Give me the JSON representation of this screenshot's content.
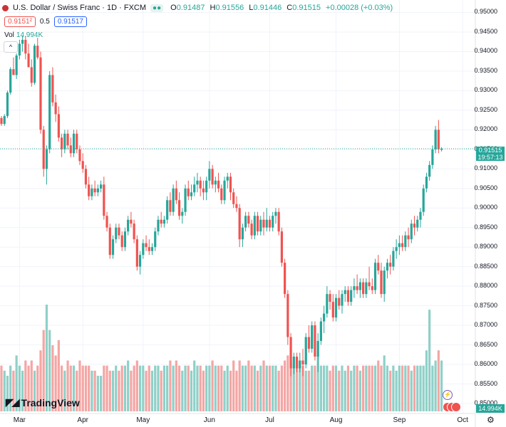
{
  "header": {
    "symbol": "U.S. Dollar / Swiss Franc · 1D · FXCM",
    "ohlc": [
      {
        "k": "O",
        "v": "0.91487"
      },
      {
        "k": "H",
        "v": "0.91556"
      },
      {
        "k": "L",
        "v": "0.91446"
      },
      {
        "k": "C",
        "v": "0.91515"
      }
    ],
    "change": "+0.00028 (+0.03%)",
    "sell_price": "0.9151²",
    "spread": "0.5",
    "buy_price": "0.91517",
    "volume_label": "Vol",
    "volume_value": "14.994K",
    "collapse_glyph": "^"
  },
  "price_tags": {
    "last_price": "0.91515",
    "countdown": "19:57:13",
    "volume": "14.994K"
  },
  "logo_text": "TradingView",
  "colors": {
    "up": "#26a69a",
    "down": "#ef5350",
    "up_volume": "#8fd0c8",
    "down_volume": "#f4a6a4",
    "grid": "#f0f3fa",
    "last_line": "#26a69a"
  },
  "chart_data": {
    "type": "candlestick",
    "symbol": "USDCHF",
    "interval": "1D",
    "y_ticks": [
      0.95,
      0.945,
      0.94,
      0.935,
      0.93,
      0.925,
      0.92,
      0.915,
      0.91,
      0.905,
      0.9,
      0.895,
      0.89,
      0.885,
      0.88,
      0.875,
      0.87,
      0.865,
      0.86,
      0.855,
      0.85
    ],
    "y_tick_labels": [
      "0.95000",
      "0.94500",
      "0.94000",
      "0.93500",
      "0.93000",
      "0.92500",
      "0.92000",
      "0.91500",
      "0.91000",
      "0.90500",
      "0.90000",
      "0.89500",
      "0.89000",
      "0.88500",
      "0.88000",
      "0.87500",
      "0.87000",
      "0.86500",
      "0.86000",
      "0.85500",
      "0.85000"
    ],
    "ylim": [
      0.848,
      0.951
    ],
    "x_labels": [
      {
        "label": "Mar",
        "index": 6
      },
      {
        "label": "Apr",
        "index": 27
      },
      {
        "label": "May",
        "index": 47
      },
      {
        "label": "Jun",
        "index": 69
      },
      {
        "label": "Jul",
        "index": 89
      },
      {
        "label": "Aug",
        "index": 111
      },
      {
        "label": "Sep",
        "index": 132
      },
      {
        "label": "Oct",
        "index": 153
      }
    ],
    "last_price": 0.91515,
    "candles": [
      [
        0.923,
        0.9235,
        0.921,
        0.9215,
        9
      ],
      [
        0.9215,
        0.924,
        0.921,
        0.9235,
        8
      ],
      [
        0.9235,
        0.93,
        0.923,
        0.9295,
        7
      ],
      [
        0.9295,
        0.936,
        0.929,
        0.9355,
        9
      ],
      [
        0.9355,
        0.9385,
        0.934,
        0.934,
        8
      ],
      [
        0.934,
        0.9395,
        0.933,
        0.939,
        11
      ],
      [
        0.939,
        0.943,
        0.938,
        0.942,
        9
      ],
      [
        0.942,
        0.944,
        0.94,
        0.943,
        8
      ],
      [
        0.943,
        0.944,
        0.938,
        0.9395,
        10
      ],
      [
        0.9395,
        0.942,
        0.936,
        0.936,
        9
      ],
      [
        0.936,
        0.938,
        0.931,
        0.932,
        10
      ],
      [
        0.932,
        0.942,
        0.9315,
        0.9415,
        8
      ],
      [
        0.9415,
        0.9435,
        0.938,
        0.9385,
        9
      ],
      [
        0.9385,
        0.94,
        0.919,
        0.92,
        12
      ],
      [
        0.92,
        0.921,
        0.908,
        0.91,
        16
      ],
      [
        0.91,
        0.916,
        0.906,
        0.915,
        21
      ],
      [
        0.915,
        0.935,
        0.914,
        0.934,
        16
      ],
      [
        0.934,
        0.936,
        0.926,
        0.927,
        13
      ],
      [
        0.927,
        0.929,
        0.922,
        0.924,
        11
      ],
      [
        0.924,
        0.926,
        0.917,
        0.918,
        14
      ],
      [
        0.918,
        0.919,
        0.913,
        0.915,
        9
      ],
      [
        0.915,
        0.92,
        0.914,
        0.919,
        8
      ],
      [
        0.919,
        0.92,
        0.915,
        0.916,
        10
      ],
      [
        0.916,
        0.918,
        0.913,
        0.914,
        9
      ],
      [
        0.914,
        0.92,
        0.913,
        0.919,
        9
      ],
      [
        0.919,
        0.92,
        0.914,
        0.915,
        8
      ],
      [
        0.915,
        0.916,
        0.911,
        0.912,
        10
      ],
      [
        0.912,
        0.914,
        0.909,
        0.91,
        9
      ],
      [
        0.91,
        0.911,
        0.905,
        0.906,
        9
      ],
      [
        0.906,
        0.908,
        0.902,
        0.903,
        9
      ],
      [
        0.903,
        0.906,
        0.902,
        0.905,
        8
      ],
      [
        0.905,
        0.907,
        0.903,
        0.904,
        8
      ],
      [
        0.904,
        0.906,
        0.903,
        0.905,
        7
      ],
      [
        0.905,
        0.907,
        0.904,
        0.906,
        7
      ],
      [
        0.906,
        0.908,
        0.897,
        0.898,
        9
      ],
      [
        0.898,
        0.899,
        0.894,
        0.895,
        9
      ],
      [
        0.895,
        0.896,
        0.887,
        0.888,
        8
      ],
      [
        0.888,
        0.893,
        0.887,
        0.892,
        8
      ],
      [
        0.892,
        0.896,
        0.891,
        0.895,
        9
      ],
      [
        0.895,
        0.896,
        0.892,
        0.893,
        8
      ],
      [
        0.893,
        0.894,
        0.889,
        0.89,
        9
      ],
      [
        0.89,
        0.895,
        0.889,
        0.894,
        9
      ],
      [
        0.894,
        0.898,
        0.893,
        0.897,
        10
      ],
      [
        0.897,
        0.899,
        0.895,
        0.896,
        8
      ],
      [
        0.896,
        0.897,
        0.891,
        0.892,
        9
      ],
      [
        0.892,
        0.893,
        0.884,
        0.885,
        10
      ],
      [
        0.885,
        0.889,
        0.883,
        0.888,
        9
      ],
      [
        0.888,
        0.892,
        0.887,
        0.891,
        9
      ],
      [
        0.891,
        0.893,
        0.889,
        0.89,
        8
      ],
      [
        0.89,
        0.892,
        0.888,
        0.889,
        9
      ],
      [
        0.889,
        0.891,
        0.888,
        0.89,
        8
      ],
      [
        0.89,
        0.895,
        0.889,
        0.894,
        9
      ],
      [
        0.894,
        0.898,
        0.893,
        0.897,
        9
      ],
      [
        0.897,
        0.899,
        0.895,
        0.896,
        8
      ],
      [
        0.896,
        0.898,
        0.895,
        0.897,
        9
      ],
      [
        0.897,
        0.903,
        0.896,
        0.902,
        9
      ],
      [
        0.902,
        0.904,
        0.898,
        0.899,
        10
      ],
      [
        0.899,
        0.906,
        0.898,
        0.905,
        9
      ],
      [
        0.905,
        0.907,
        0.901,
        0.902,
        10
      ],
      [
        0.902,
        0.904,
        0.897,
        0.898,
        9
      ],
      [
        0.898,
        0.9,
        0.896,
        0.899,
        8
      ],
      [
        0.899,
        0.906,
        0.898,
        0.905,
        9
      ],
      [
        0.905,
        0.907,
        0.902,
        0.903,
        9
      ],
      [
        0.903,
        0.906,
        0.902,
        0.904,
        8
      ],
      [
        0.904,
        0.908,
        0.903,
        0.906,
        10
      ],
      [
        0.906,
        0.909,
        0.904,
        0.907,
        9
      ],
      [
        0.907,
        0.908,
        0.903,
        0.905,
        9
      ],
      [
        0.905,
        0.907,
        0.902,
        0.904,
        8
      ],
      [
        0.904,
        0.908,
        0.902,
        0.907,
        9
      ],
      [
        0.907,
        0.912,
        0.905,
        0.91,
        9
      ],
      [
        0.91,
        0.911,
        0.905,
        0.906,
        10
      ],
      [
        0.906,
        0.908,
        0.904,
        0.907,
        9
      ],
      [
        0.907,
        0.909,
        0.904,
        0.905,
        9
      ],
      [
        0.905,
        0.906,
        0.901,
        0.902,
        9
      ],
      [
        0.902,
        0.908,
        0.901,
        0.907,
        8
      ],
      [
        0.907,
        0.909,
        0.905,
        0.908,
        9
      ],
      [
        0.908,
        0.909,
        0.902,
        0.904,
        8
      ],
      [
        0.904,
        0.905,
        0.9,
        0.901,
        10
      ],
      [
        0.901,
        0.903,
        0.899,
        0.9,
        8
      ],
      [
        0.9,
        0.901,
        0.89,
        0.892,
        10
      ],
      [
        0.892,
        0.896,
        0.89,
        0.895,
        9
      ],
      [
        0.895,
        0.899,
        0.894,
        0.898,
        9
      ],
      [
        0.898,
        0.899,
        0.895,
        0.896,
        10
      ],
      [
        0.896,
        0.897,
        0.892,
        0.893,
        9
      ],
      [
        0.893,
        0.899,
        0.892,
        0.898,
        9
      ],
      [
        0.898,
        0.899,
        0.893,
        0.894,
        8
      ],
      [
        0.894,
        0.898,
        0.893,
        0.897,
        9
      ],
      [
        0.897,
        0.899,
        0.893,
        0.895,
        10
      ],
      [
        0.895,
        0.9,
        0.894,
        0.897,
        9
      ],
      [
        0.897,
        0.898,
        0.894,
        0.895,
        9
      ],
      [
        0.895,
        0.899,
        0.894,
        0.898,
        9
      ],
      [
        0.898,
        0.9,
        0.896,
        0.899,
        9
      ],
      [
        0.899,
        0.9,
        0.893,
        0.894,
        8
      ],
      [
        0.894,
        0.895,
        0.885,
        0.886,
        9
      ],
      [
        0.886,
        0.887,
        0.877,
        0.878,
        10
      ],
      [
        0.878,
        0.879,
        0.865,
        0.867,
        11
      ],
      [
        0.867,
        0.868,
        0.857,
        0.859,
        10
      ],
      [
        0.859,
        0.863,
        0.8575,
        0.862,
        9
      ],
      [
        0.862,
        0.863,
        0.858,
        0.859,
        10
      ],
      [
        0.859,
        0.863,
        0.858,
        0.861,
        9
      ],
      [
        0.861,
        0.864,
        0.857,
        0.86,
        9
      ],
      [
        0.86,
        0.868,
        0.859,
        0.867,
        8
      ],
      [
        0.867,
        0.87,
        0.863,
        0.864,
        8
      ],
      [
        0.864,
        0.871,
        0.863,
        0.87,
        9
      ],
      [
        0.87,
        0.871,
        0.861,
        0.862,
        9
      ],
      [
        0.862,
        0.868,
        0.858,
        0.866,
        12
      ],
      [
        0.866,
        0.872,
        0.865,
        0.871,
        9
      ],
      [
        0.871,
        0.875,
        0.868,
        0.873,
        9
      ],
      [
        0.873,
        0.88,
        0.872,
        0.878,
        9
      ],
      [
        0.878,
        0.879,
        0.874,
        0.876,
        8
      ],
      [
        0.876,
        0.878,
        0.871,
        0.872,
        9
      ],
      [
        0.872,
        0.878,
        0.871,
        0.877,
        9
      ],
      [
        0.877,
        0.879,
        0.874,
        0.875,
        8
      ],
      [
        0.875,
        0.879,
        0.873,
        0.878,
        9
      ],
      [
        0.878,
        0.88,
        0.876,
        0.879,
        8
      ],
      [
        0.879,
        0.88,
        0.875,
        0.876,
        9
      ],
      [
        0.876,
        0.88,
        0.875,
        0.879,
        8
      ],
      [
        0.879,
        0.882,
        0.877,
        0.88,
        9
      ],
      [
        0.88,
        0.883,
        0.878,
        0.879,
        9
      ],
      [
        0.879,
        0.882,
        0.877,
        0.881,
        8
      ],
      [
        0.881,
        0.882,
        0.877,
        0.878,
        9
      ],
      [
        0.878,
        0.882,
        0.877,
        0.881,
        9
      ],
      [
        0.881,
        0.885,
        0.879,
        0.88,
        9
      ],
      [
        0.88,
        0.882,
        0.878,
        0.879,
        9
      ],
      [
        0.879,
        0.887,
        0.878,
        0.886,
        9
      ],
      [
        0.886,
        0.888,
        0.883,
        0.884,
        10
      ],
      [
        0.884,
        0.886,
        0.877,
        0.878,
        9
      ],
      [
        0.878,
        0.885,
        0.876,
        0.884,
        11
      ],
      [
        0.884,
        0.887,
        0.882,
        0.886,
        9
      ],
      [
        0.886,
        0.888,
        0.883,
        0.885,
        8
      ],
      [
        0.885,
        0.89,
        0.884,
        0.889,
        9
      ],
      [
        0.889,
        0.892,
        0.887,
        0.89,
        8
      ],
      [
        0.89,
        0.893,
        0.888,
        0.891,
        9
      ],
      [
        0.891,
        0.893,
        0.889,
        0.89,
        9
      ],
      [
        0.89,
        0.894,
        0.889,
        0.893,
        9
      ],
      [
        0.893,
        0.895,
        0.89,
        0.892,
        9
      ],
      [
        0.892,
        0.897,
        0.891,
        0.896,
        8
      ],
      [
        0.896,
        0.898,
        0.893,
        0.895,
        9
      ],
      [
        0.895,
        0.898,
        0.894,
        0.897,
        9
      ],
      [
        0.897,
        0.9,
        0.895,
        0.899,
        9
      ],
      [
        0.899,
        0.906,
        0.898,
        0.905,
        9
      ],
      [
        0.905,
        0.909,
        0.904,
        0.908,
        12
      ],
      [
        0.908,
        0.912,
        0.907,
        0.911,
        20
      ],
      [
        0.911,
        0.916,
        0.91,
        0.915,
        9
      ],
      [
        0.915,
        0.921,
        0.914,
        0.92,
        10
      ],
      [
        0.92,
        0.9225,
        0.914,
        0.915,
        12
      ],
      [
        0.91487,
        0.91556,
        0.91446,
        0.91515,
        10
      ]
    ]
  }
}
